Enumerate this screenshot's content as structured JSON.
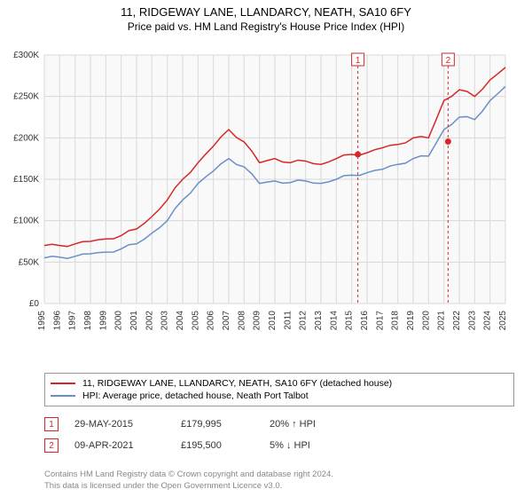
{
  "title": {
    "main": "11, RIDGEWAY LANE, LLANDARCY, NEATH, SA10 6FY",
    "sub": "Price paid vs. HM Land Registry's House Price Index (HPI)"
  },
  "chart": {
    "type": "line",
    "background_color": "#f9f9f9",
    "grid_color": "#d8d8d8",
    "ylim": [
      0,
      300000
    ],
    "ytick_step": 50000,
    "ytick_labels": [
      "£0",
      "£50K",
      "£100K",
      "£150K",
      "£200K",
      "£250K",
      "£300K"
    ],
    "xrange": [
      1995,
      2025
    ],
    "xtick_step": 1,
    "series": [
      {
        "name": "property",
        "label": "11, RIDGEWAY LANE, LLANDARCY, NEATH, SA10 6FY (detached house)",
        "color": "#d62728",
        "line_width": 1.5,
        "years": [
          1995,
          1996,
          1997,
          1998,
          1999,
          2000,
          2001,
          2002,
          2003,
          2004,
          2005,
          2006,
          2007,
          2008,
          2009,
          2010,
          2011,
          2012,
          2013,
          2014,
          2015,
          2016,
          2017,
          2018,
          2019,
          2020,
          2021,
          2022,
          2023,
          2024,
          2025
        ],
        "values": [
          70000,
          70000,
          72000,
          75000,
          78000,
          82000,
          90000,
          105000,
          125000,
          150000,
          170000,
          190000,
          210000,
          195000,
          170000,
          175000,
          170000,
          172000,
          168000,
          175000,
          180000,
          182000,
          188000,
          192000,
          200000,
          200000,
          245000,
          258000,
          250000,
          270000,
          285000
        ]
      },
      {
        "name": "hpi",
        "label": "HPI: Average price, detached house, Neath Port Talbot",
        "color": "#6a8fc7",
        "line_width": 1.5,
        "years": [
          1995,
          1996,
          1997,
          1998,
          1999,
          2000,
          2001,
          2002,
          2003,
          2004,
          2005,
          2006,
          2007,
          2008,
          2009,
          2010,
          2011,
          2012,
          2013,
          2014,
          2015,
          2016,
          2017,
          2018,
          2019,
          2020,
          2021,
          2022,
          2023,
          2024,
          2025
        ],
        "values": [
          55000,
          56000,
          57000,
          60000,
          62000,
          66000,
          72000,
          85000,
          100000,
          125000,
          145000,
          160000,
          175000,
          165000,
          145000,
          148000,
          146000,
          148000,
          145000,
          150000,
          155000,
          158000,
          162000,
          168000,
          175000,
          178000,
          210000,
          225000,
          222000,
          245000,
          262000
        ]
      }
    ],
    "markers": [
      {
        "num": "1",
        "year": 2015.4,
        "value": 179995
      },
      {
        "num": "2",
        "year": 2021.27,
        "value": 195500
      }
    ]
  },
  "legend": {
    "items": [
      {
        "color": "#d62728",
        "label": "11, RIDGEWAY LANE, LLANDARCY, NEATH, SA10 6FY (detached house)"
      },
      {
        "color": "#6a8fc7",
        "label": "HPI: Average price, detached house, Neath Port Talbot"
      }
    ]
  },
  "sales": [
    {
      "num": "1",
      "date": "29-MAY-2015",
      "price": "£179,995",
      "delta": "20% ↑ HPI"
    },
    {
      "num": "2",
      "date": "09-APR-2021",
      "price": "£195,500",
      "delta": "5% ↓ HPI"
    }
  ],
  "footer": {
    "line1": "Contains HM Land Registry data © Crown copyright and database right 2024.",
    "line2": "This data is licensed under the Open Government Licence v3.0."
  }
}
